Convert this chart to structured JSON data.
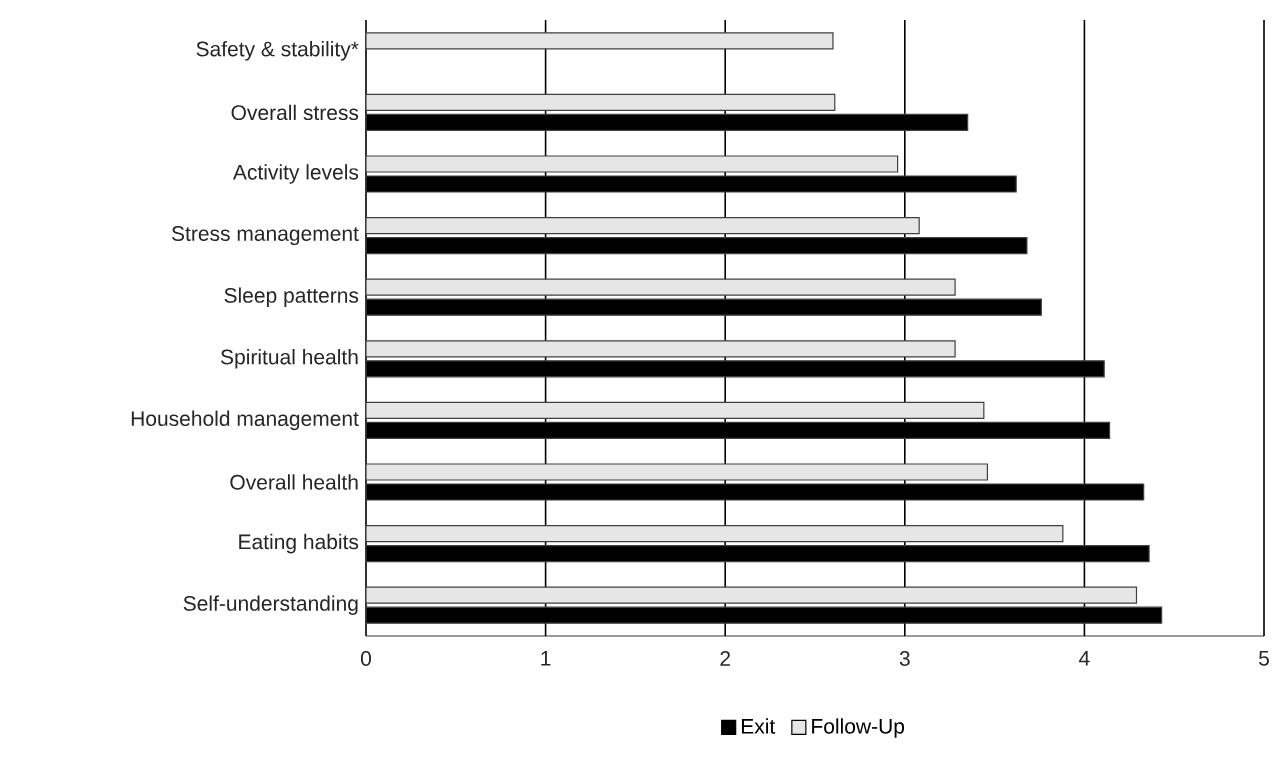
{
  "chart_data": {
    "type": "bar",
    "orientation": "horizontal",
    "categories": [
      "Safety & stability*",
      "Overall stress",
      "Activity levels",
      "Stress management",
      "Sleep patterns",
      "Spiritual health",
      "Household management",
      "Overall health",
      "Eating habits",
      "Self-understanding"
    ],
    "series": [
      {
        "name": "Exit",
        "color": "#000000",
        "values": [
          null,
          3.35,
          3.62,
          3.68,
          3.76,
          4.11,
          4.14,
          4.33,
          4.36,
          4.43
        ]
      },
      {
        "name": "Follow-Up",
        "color": "#e6e6e6",
        "values": [
          2.6,
          2.61,
          2.96,
          3.08,
          3.28,
          3.28,
          3.44,
          3.46,
          3.88,
          4.29
        ]
      }
    ],
    "xlim": [
      0,
      5
    ],
    "xticks": [
      0,
      1,
      2,
      3,
      4,
      5
    ],
    "grid": "x",
    "legend": "bottom"
  }
}
